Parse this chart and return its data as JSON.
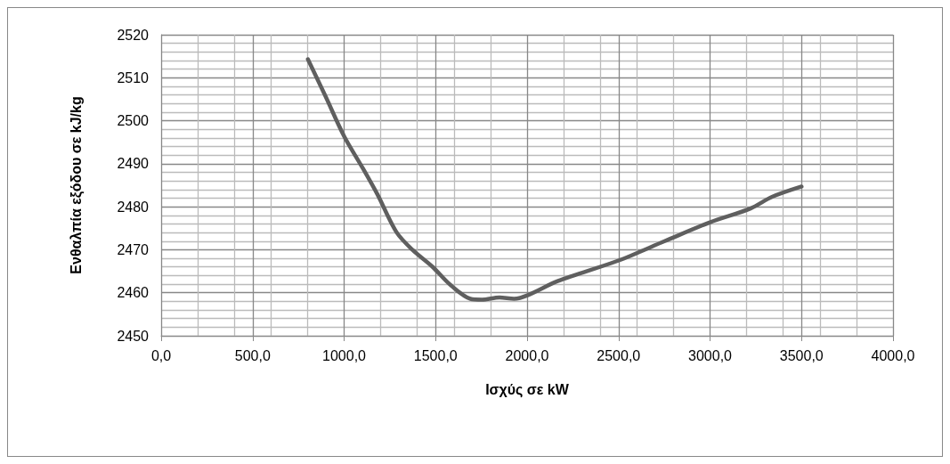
{
  "chart_data": {
    "type": "line",
    "xlabel": "Ισχύς σε kW",
    "ylabel": "Ενθαλπία εξόδου σε kJ/kg",
    "x": [
      802,
      897,
      1000,
      1103,
      1183,
      1286,
      1373,
      1484,
      1579,
      1690,
      1754,
      1849,
      1929,
      2008,
      2167,
      2500,
      2752,
      3000,
      3221,
      3339,
      3500
    ],
    "series": [
      {
        "color": "#5f5f5f",
        "values": [
          2514.3,
          2505.8,
          2496.4,
          2488.9,
          2482.8,
          2474.1,
          2470.0,
          2466.0,
          2461.9,
          2458.6,
          2458.4,
          2458.9,
          2458.6,
          2459.5,
          2462.7,
          2467.5,
          2472.0,
          2476.4,
          2479.6,
          2482.3,
          2484.7
        ]
      }
    ],
    "xlim": [
      0,
      4000
    ],
    "xticks": [
      {
        "value": 0,
        "label": "0,0"
      },
      {
        "value": 500,
        "label": "500,0"
      },
      {
        "value": 1000,
        "label": "1000,0"
      },
      {
        "value": 1500,
        "label": "1500,0"
      },
      {
        "value": 2000,
        "label": "2000,0"
      },
      {
        "value": 2500,
        "label": "2500,0"
      },
      {
        "value": 3000,
        "label": "3000,0"
      },
      {
        "value": 3500,
        "label": "3500,0"
      },
      {
        "value": 4000,
        "label": "4000,0"
      }
    ],
    "ylim": [
      2450,
      2520
    ],
    "yticks": [
      2450,
      2460,
      2470,
      2480,
      2490,
      2500,
      2510,
      2520
    ],
    "grid": true,
    "marker": "none",
    "line_style": "solid"
  }
}
